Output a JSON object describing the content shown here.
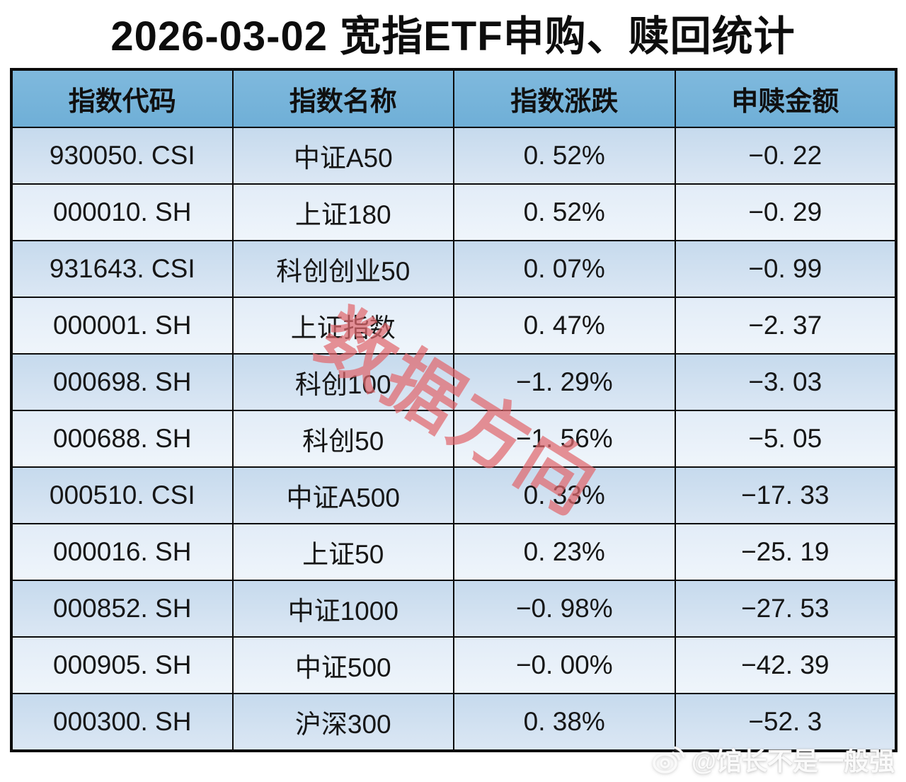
{
  "title": "2026-03-02 宽指ETF申购、赎回统计",
  "table": {
    "headers": [
      "指数代码",
      "指数名称",
      "指数涨跌",
      "申赎金额"
    ],
    "rows": [
      [
        "930050. CSI",
        "中证A50",
        "0. 52%",
        "−0. 22"
      ],
      [
        "000010. SH",
        "上证180",
        "0. 52%",
        "−0. 29"
      ],
      [
        "931643. CSI",
        "科创创业50",
        "0. 07%",
        "−0. 99"
      ],
      [
        "000001. SH",
        "上证指数",
        "0. 47%",
        "−2. 37"
      ],
      [
        "000698. SH",
        "科创100",
        "−1. 29%",
        "−3. 03"
      ],
      [
        "000688. SH",
        "科创50",
        "−1. 56%",
        "−5. 05"
      ],
      [
        "000510. CSI",
        "中证A500",
        "0. 33%",
        "−17. 33"
      ],
      [
        "000016. SH",
        "上证50",
        "0. 23%",
        "−25. 19"
      ],
      [
        "000852. SH",
        "中证1000",
        "−0. 98%",
        "−27. 53"
      ],
      [
        "000905. SH",
        "中证500",
        "−0. 00%",
        "−42. 39"
      ],
      [
        "000300. SH",
        "沪深300",
        "0. 38%",
        "−52. 3"
      ]
    ]
  },
  "watermark": {
    "text": "数据方向",
    "color": "#e0686e"
  },
  "credit": {
    "icon": "weibo-icon",
    "text": "@馆长不是一般强"
  },
  "colors": {
    "header_bg": "#6fafd7",
    "row_odd_bg": "#c6daed",
    "row_even_bg": "#e2ecf7",
    "border": "#0c0c0c",
    "watermark_red": "#e0686e"
  },
  "chart_data": {
    "type": "table",
    "title": "2026-03-02 宽指ETF申购、赎回统计",
    "columns": [
      "指数代码",
      "指数名称",
      "指数涨跌(%)",
      "申赎金额"
    ],
    "rows": [
      {
        "code": "930050.CSI",
        "name": "中证A50",
        "change_pct": 0.52,
        "amount": -0.22
      },
      {
        "code": "000010.SH",
        "name": "上证180",
        "change_pct": 0.52,
        "amount": -0.29
      },
      {
        "code": "931643.CSI",
        "name": "科创创业50",
        "change_pct": 0.07,
        "amount": -0.99
      },
      {
        "code": "000001.SH",
        "name": "上证指数",
        "change_pct": 0.47,
        "amount": -2.37
      },
      {
        "code": "000698.SH",
        "name": "科创100",
        "change_pct": -1.29,
        "amount": -3.03
      },
      {
        "code": "000688.SH",
        "name": "科创50",
        "change_pct": -1.56,
        "amount": -5.05
      },
      {
        "code": "000510.CSI",
        "name": "中证A500",
        "change_pct": 0.33,
        "amount": -17.33
      },
      {
        "code": "000016.SH",
        "name": "上证50",
        "change_pct": 0.23,
        "amount": -25.19
      },
      {
        "code": "000852.SH",
        "name": "中证1000",
        "change_pct": -0.98,
        "amount": -27.53
      },
      {
        "code": "000905.SH",
        "name": "中证500",
        "change_pct": -0.0,
        "amount": -42.39
      },
      {
        "code": "000300.SH",
        "name": "沪深300",
        "change_pct": 0.38,
        "amount": -52.3
      }
    ]
  }
}
